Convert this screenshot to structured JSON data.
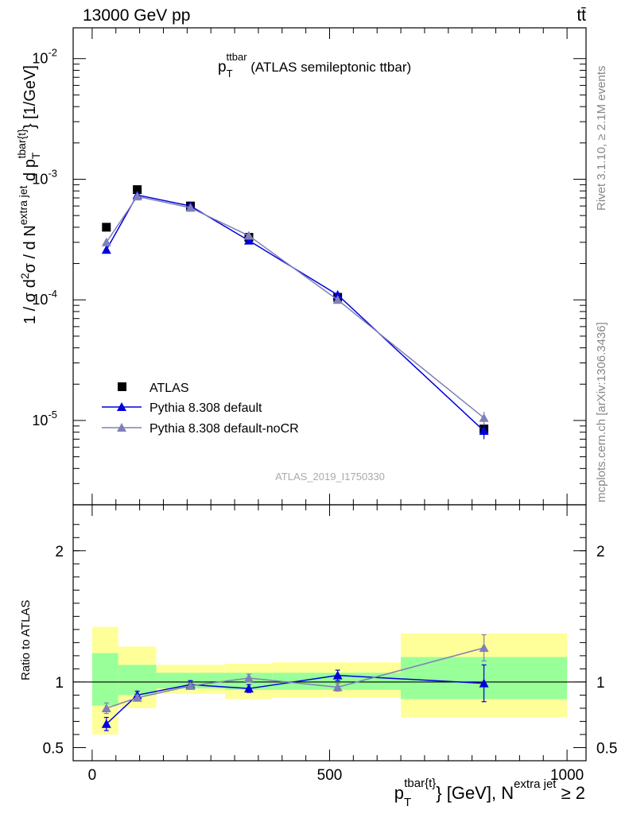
{
  "header": {
    "energy_label": "13000 GeV pp",
    "process_label": "tt̄"
  },
  "side_labels": {
    "rivet": "Rivet 3.1.10, ≥ 2.1M events",
    "mcplots": "mcplots.cern.ch [arXiv:1306.3436]"
  },
  "watermark": "ATLAS_2019_I1750330",
  "chart_data": [
    {
      "type": "scatter",
      "panel": "main",
      "title": {
        "main": "p",
        "sub": "T",
        "sup": "ttbar",
        "rest": " (ATLAS semileptonic ttbar)"
      },
      "ylabel": {
        "p1": "1 / σ d",
        "sup1": "2",
        "p2": "σ  /  d N",
        "sup2": "extra jet",
        "p3": " d p",
        "sub3": "T",
        "sup3": "tbar{t}",
        "p4": "} [1/GeV]"
      },
      "y_scale": "log",
      "ylim": [
        2e-06,
        0.018
      ],
      "xlim": [
        -40,
        1040
      ],
      "y_ticks": [
        {
          "base": "10",
          "exp": "-5",
          "value": 1e-05
        },
        {
          "base": "10",
          "exp": "-4",
          "value": 0.0001
        },
        {
          "base": "10",
          "exp": "-3",
          "value": 0.001
        },
        {
          "base": "10",
          "exp": "-2",
          "value": 0.01
        }
      ],
      "legend_position": "bottom-left",
      "series": [
        {
          "name": "ATLAS",
          "color": "#000000",
          "marker": "square",
          "x": [
            30,
            95,
            207,
            330,
            517,
            825
          ],
          "y": [
            0.0004,
            0.00082,
            0.0006,
            0.00033,
            0.000105,
            8.5e-06
          ],
          "yerr": [
            1.2e-05,
            1.8e-05,
            1.2e-05,
            8e-06,
            4e-06,
            1e-06
          ]
        },
        {
          "name": "Pythia 8.308 default",
          "color": "#0000dd",
          "marker": "triangle",
          "x": [
            30,
            95,
            207,
            330,
            517,
            825
          ],
          "y": [
            0.00026,
            0.00074,
            0.0006,
            0.00031,
            0.00011,
            8.2e-06
          ],
          "yerr": [
            1e-05,
            1e-05,
            1e-05,
            6e-06,
            3e-06,
            1.2e-06
          ]
        },
        {
          "name": "Pythia 8.308 default-noCR",
          "color": "#8080b8",
          "marker": "triangle",
          "x": [
            30,
            95,
            207,
            330,
            517,
            825
          ],
          "y": [
            0.0003,
            0.00072,
            0.00058,
            0.00034,
            0.0001,
            1.05e-05
          ],
          "yerr": [
            1e-05,
            1e-05,
            1e-05,
            7e-06,
            3e-06,
            1.3e-06
          ]
        }
      ]
    },
    {
      "type": "scatter",
      "panel": "ratio",
      "ylabel": "Ratio to ATLAS",
      "xlabel": {
        "p": "p",
        "sub": "T",
        "sup": "tbar{t}",
        "rest": "} [GeV], N",
        "sup2": "extra jet",
        "tail": " ≥ 2"
      },
      "ylim": [
        0.4,
        2.35
      ],
      "xlim": [
        -40,
        1040
      ],
      "y_ticks": [
        {
          "label": "0.5",
          "value": 0.5
        },
        {
          "label": "1",
          "value": 1
        },
        {
          "label": "2",
          "value": 2
        }
      ],
      "x_ticks": [
        {
          "label": "0",
          "value": 0
        },
        {
          "label": "500",
          "value": 500
        },
        {
          "label": "1000",
          "value": 1000
        }
      ],
      "bands": [
        {
          "x0": 0,
          "x1": 55,
          "y_lo": 0.6,
          "y_hi": 1.42,
          "g_lo": 0.82,
          "g_hi": 1.22
        },
        {
          "x0": 55,
          "x1": 135,
          "y_lo": 0.8,
          "y_hi": 1.27,
          "g_lo": 0.9,
          "g_hi": 1.13
        },
        {
          "x0": 135,
          "x1": 280,
          "y_lo": 0.91,
          "y_hi": 1.13,
          "g_lo": 0.95,
          "g_hi": 1.07
        },
        {
          "x0": 280,
          "x1": 380,
          "y_lo": 0.87,
          "y_hi": 1.14,
          "g_lo": 0.94,
          "g_hi": 1.07
        },
        {
          "x0": 380,
          "x1": 650,
          "y_lo": 0.88,
          "y_hi": 1.15,
          "g_lo": 0.94,
          "g_hi": 1.07
        },
        {
          "x0": 650,
          "x1": 1000,
          "y_lo": 0.73,
          "y_hi": 1.37,
          "g_lo": 0.87,
          "g_hi": 1.19
        }
      ],
      "series": [
        {
          "name": "Pythia 8.308 default",
          "color": "#0000dd",
          "x": [
            30,
            95,
            207,
            330,
            517,
            825
          ],
          "y": [
            0.68,
            0.9,
            0.98,
            0.95,
            1.05,
            0.99
          ],
          "yerr": [
            0.05,
            0.03,
            0.03,
            0.03,
            0.04,
            0.14
          ]
        },
        {
          "name": "Pythia 8.308 default-noCR",
          "color": "#8080b8",
          "x": [
            30,
            95,
            207,
            330,
            517,
            825
          ],
          "y": [
            0.8,
            0.88,
            0.97,
            1.03,
            0.96,
            1.26
          ],
          "yerr": [
            0.04,
            0.02,
            0.02,
            0.03,
            0.03,
            0.1
          ]
        }
      ]
    }
  ]
}
